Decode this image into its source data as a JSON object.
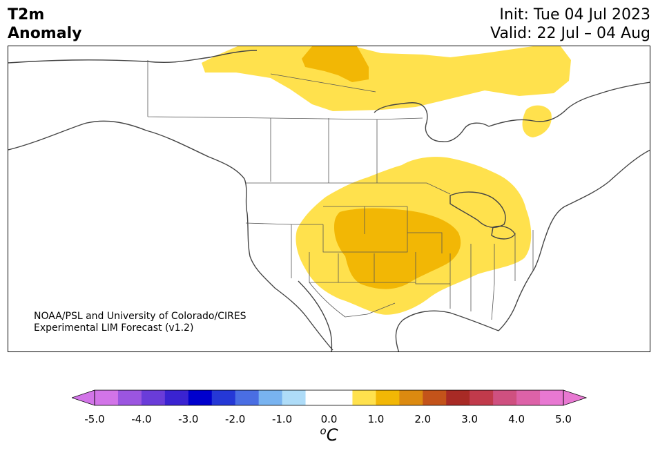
{
  "header": {
    "title_line1": "T2m",
    "title_line2": "Anomaly",
    "init": "Init: Tue 04 Jul 2023",
    "valid": "Valid: 22 Jul – 04 Aug"
  },
  "credit": {
    "line1": "NOAA/PSL and University of Colorado/CIRES",
    "line2": "Experimental LIM Forecast (v1.2)"
  },
  "colorbar": {
    "colors": [
      "#d274e8",
      "#9b55e0",
      "#6a3cd9",
      "#3a23d1",
      "#0000cd",
      "#2538d6",
      "#4a6ee3",
      "#78b3f0",
      "#aedcf8",
      "#ffffff",
      "#ffffff",
      "#ffe14d",
      "#f2b705",
      "#dc8a10",
      "#c3531a",
      "#a82a25",
      "#c13a4b",
      "#cf5080",
      "#dd62a8",
      "#e878d2"
    ],
    "under_color": "#d274e8",
    "over_color": "#e878d2",
    "ticks": [
      "-5.0",
      "-4.0",
      "-3.0",
      "-2.0",
      "-1.0",
      "0.0",
      "1.0",
      "2.0",
      "3.0",
      "4.0",
      "5.0"
    ],
    "unit_base": "C",
    "unit_sup": "o"
  },
  "map": {
    "land_color": "#fffffd",
    "ocean_color": "#ffffff",
    "anomaly_colors": {
      "plus_1": "#ffe14d",
      "plus_2": "#f2b705"
    }
  }
}
